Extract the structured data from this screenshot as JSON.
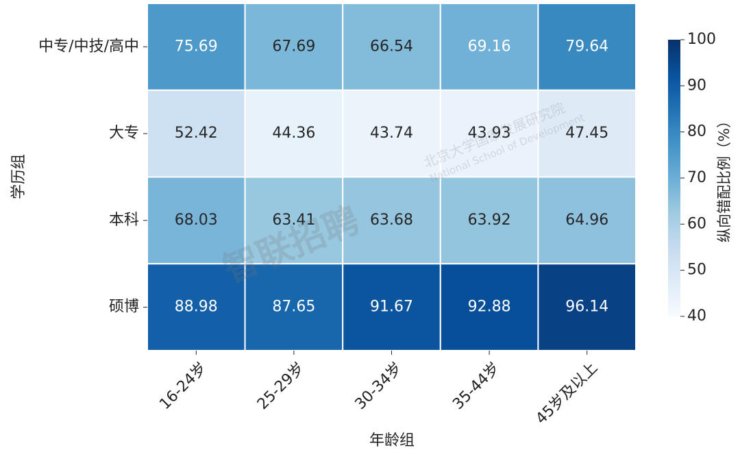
{
  "chart_data": {
    "type": "heatmap",
    "x_label": "年龄组",
    "y_label": "学历组",
    "colorbar_label": "纵向错配比例（%）",
    "categories": [
      "16-24岁",
      "25-29岁",
      "30-34岁",
      "35-44岁",
      "45岁及以上"
    ],
    "rows": [
      "中专/中技/高中",
      "大专",
      "本科",
      "硕博"
    ],
    "values": [
      [
        75.69,
        67.69,
        66.54,
        69.16,
        79.64
      ],
      [
        52.42,
        44.36,
        43.74,
        43.93,
        47.45
      ],
      [
        68.03,
        63.41,
        63.68,
        63.92,
        64.96
      ],
      [
        88.98,
        87.65,
        91.67,
        92.88,
        96.14
      ]
    ],
    "colormap": "Blues",
    "clim": [
      40,
      100
    ],
    "cticks": [
      40,
      50,
      60,
      70,
      80,
      90,
      100
    ],
    "watermark": [
      "智联招聘",
      "北京大学国家发展研究院",
      "National School of Development"
    ]
  }
}
